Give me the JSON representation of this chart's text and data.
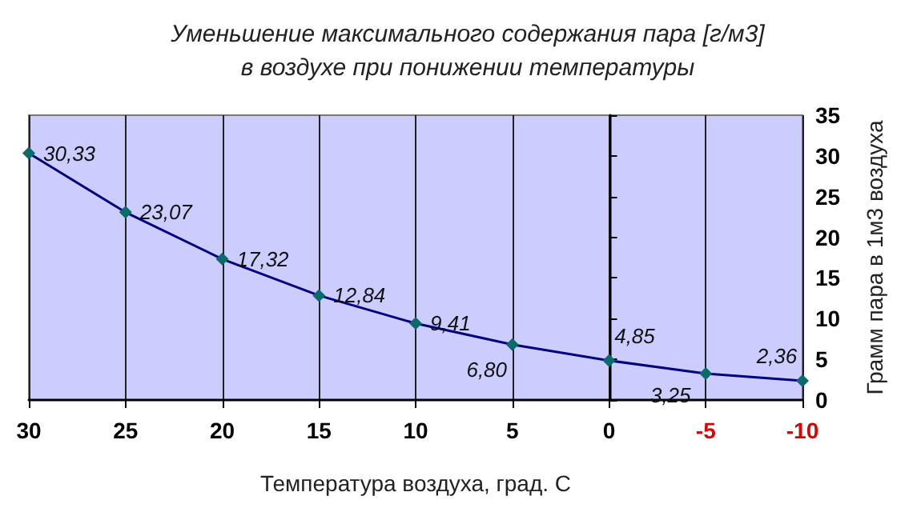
{
  "chart_data": {
    "type": "line",
    "title": "Уменьшение максимального содержания пара [г/м3]\nв воздухе при понижении температуры",
    "xlabel": "Температура воздуха, град. С",
    "ylabel": "Грамм пара в 1м3 воздуха",
    "x": [
      30,
      25,
      20,
      15,
      10,
      5,
      0,
      -5,
      -10
    ],
    "series": [
      {
        "color": "#000080",
        "values": [
          30.33,
          23.07,
          17.32,
          12.84,
          9.41,
          6.8,
          4.85,
          3.25,
          2.36
        ],
        "value_labels": [
          "30,33",
          "23,07",
          "17,32",
          "12,84",
          "9,41",
          "6,80",
          "4,85",
          "3,25",
          "2,36"
        ]
      }
    ],
    "xlim": [
      30,
      -10
    ],
    "xticks": [
      30,
      25,
      20,
      15,
      10,
      5,
      0,
      -5,
      -10
    ],
    "ylim": [
      0,
      35
    ],
    "yticks": [
      0,
      5,
      10,
      15,
      20,
      25,
      30,
      35
    ],
    "grid": "x",
    "marker": "diamond",
    "line_style": "solid"
  }
}
